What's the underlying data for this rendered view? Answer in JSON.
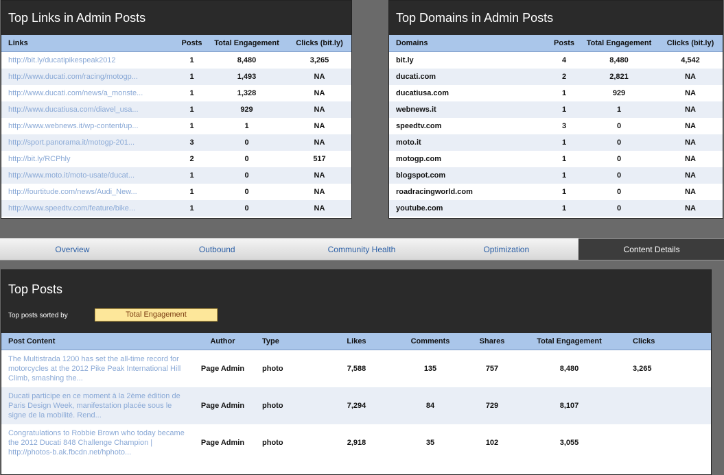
{
  "links_panel": {
    "title": "Top Links in Admin Posts",
    "columns": [
      "Links",
      "Posts",
      "Total Engagement",
      "Clicks (bit.ly)"
    ],
    "rows": [
      {
        "link": "http://bit.ly/ducatipikespeak2012",
        "posts": "1",
        "engagement": "8,480",
        "clicks": "3,265"
      },
      {
        "link": "http://www.ducati.com/racing/motogp...",
        "posts": "1",
        "engagement": "1,493",
        "clicks": "NA"
      },
      {
        "link": "http://www.ducati.com/news/a_monste...",
        "posts": "1",
        "engagement": "1,328",
        "clicks": "NA"
      },
      {
        "link": "http://www.ducatiusa.com/diavel_usa...",
        "posts": "1",
        "engagement": "929",
        "clicks": "NA"
      },
      {
        "link": "http://www.webnews.it/wp-content/up...",
        "posts": "1",
        "engagement": "1",
        "clicks": "NA"
      },
      {
        "link": "http://sport.panorama.it/motogp-201...",
        "posts": "3",
        "engagement": "0",
        "clicks": "NA"
      },
      {
        "link": "http://bit.ly/RCPhly",
        "posts": "2",
        "engagement": "0",
        "clicks": "517"
      },
      {
        "link": "http://www.moto.it/moto-usate/ducat...",
        "posts": "1",
        "engagement": "0",
        "clicks": "NA"
      },
      {
        "link": "http://fourtitude.com/news/Audi_New...",
        "posts": "1",
        "engagement": "0",
        "clicks": "NA"
      },
      {
        "link": "http://www.speedtv.com/feature/bike...",
        "posts": "1",
        "engagement": "0",
        "clicks": "NA"
      }
    ]
  },
  "domains_panel": {
    "title": "Top Domains in Admin Posts",
    "columns": [
      "Domains",
      "Posts",
      "Total Engagement",
      "Clicks (bit.ly)"
    ],
    "rows": [
      {
        "domain": "bit.ly",
        "posts": "4",
        "engagement": "8,480",
        "clicks": "4,542"
      },
      {
        "domain": "ducati.com",
        "posts": "2",
        "engagement": "2,821",
        "clicks": "NA"
      },
      {
        "domain": "ducatiusa.com",
        "posts": "1",
        "engagement": "929",
        "clicks": "NA"
      },
      {
        "domain": "webnews.it",
        "posts": "1",
        "engagement": "1",
        "clicks": "NA"
      },
      {
        "domain": "speedtv.com",
        "posts": "3",
        "engagement": "0",
        "clicks": "NA"
      },
      {
        "domain": "moto.it",
        "posts": "1",
        "engagement": "0",
        "clicks": "NA"
      },
      {
        "domain": "motogp.com",
        "posts": "1",
        "engagement": "0",
        "clicks": "NA"
      },
      {
        "domain": "blogspot.com",
        "posts": "1",
        "engagement": "0",
        "clicks": "NA"
      },
      {
        "domain": "roadracingworld.com",
        "posts": "1",
        "engagement": "0",
        "clicks": "NA"
      },
      {
        "domain": "youtube.com",
        "posts": "1",
        "engagement": "0",
        "clicks": "NA"
      }
    ]
  },
  "tabs": [
    {
      "label": "Overview",
      "active": false
    },
    {
      "label": "Outbound",
      "active": false
    },
    {
      "label": "Community Health",
      "active": false
    },
    {
      "label": "Optimization",
      "active": false
    },
    {
      "label": "Content Details",
      "active": true
    }
  ],
  "posts_panel": {
    "title": "Top Posts",
    "sort_label": "Top posts sorted by",
    "sort_value": "Total Engagement",
    "columns": [
      "Post Content",
      "Author",
      "Type",
      "Likes",
      "Comments",
      "Shares",
      "Total Engagement",
      "Clicks"
    ],
    "rows": [
      {
        "content": "The Multistrada 1200 has set the all-time record for motorcycles at the 2012 Pike Peak International Hill Climb, smashing the...",
        "author": "Page Admin",
        "type": "photo",
        "likes": "7,588",
        "comments": "135",
        "shares": "757",
        "engagement": "8,480",
        "clicks": "3,265"
      },
      {
        "content": "Ducati participe en ce moment à la 2ème édition de Paris Design Week, manifestation placée sous le signe de la mobilité. Rend...",
        "author": "Page Admin",
        "type": "photo",
        "likes": "7,294",
        "comments": "84",
        "shares": "729",
        "engagement": "8,107",
        "clicks": ""
      },
      {
        "content": "Congratulations to Robbie Brown who today became the 2012 Ducati 848 Challenge Champion | http://photos-b.ak.fbcdn.net/hphoto...",
        "author": "Page Admin",
        "type": "photo",
        "likes": "2,918",
        "comments": "35",
        "shares": "102",
        "engagement": "3,055",
        "clicks": ""
      }
    ]
  }
}
